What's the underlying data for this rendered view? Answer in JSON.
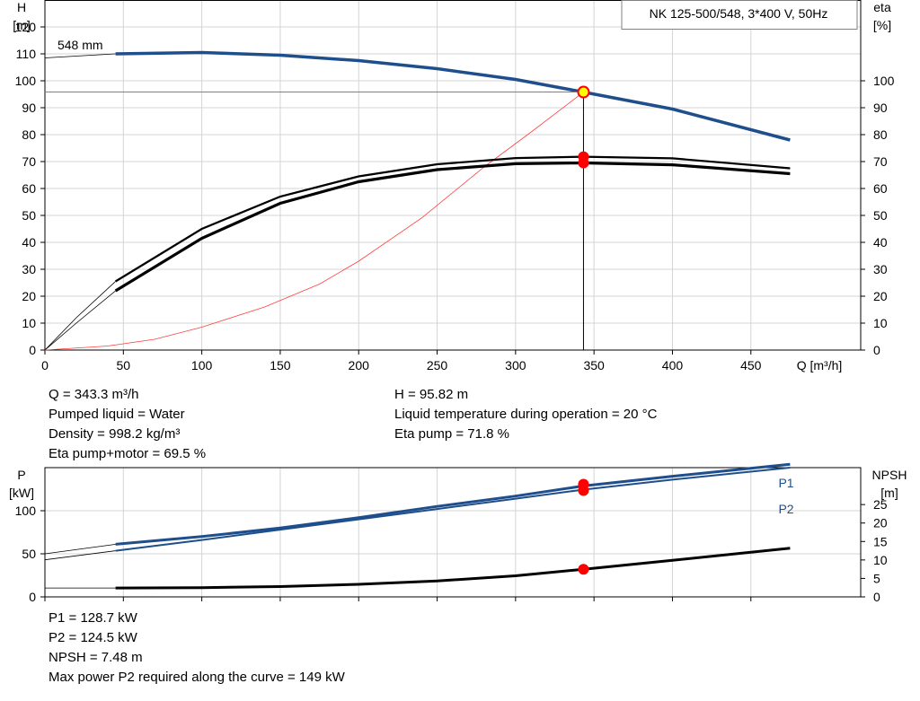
{
  "chart_data": [
    {
      "type": "line",
      "title": "NK 125-500/548, 3*400 V, 50Hz",
      "xlabel": "Q [m³/h]",
      "ylabel_left": [
        "H",
        "[m]"
      ],
      "ylabel_right": [
        "eta",
        "[%]"
      ],
      "xlim": [
        0,
        520
      ],
      "ylim_left": [
        0,
        130
      ],
      "ylim_right": [
        0,
        130
      ],
      "x_ticks": [
        0,
        50,
        100,
        150,
        200,
        250,
        300,
        350,
        400,
        450
      ],
      "y_ticks_left": [
        0,
        10,
        20,
        30,
        40,
        50,
        60,
        70,
        80,
        90,
        100,
        110,
        120
      ],
      "y_ticks_right": [
        0,
        10,
        20,
        30,
        40,
        50,
        60,
        70,
        80,
        90,
        100
      ],
      "curve_label": "548 mm",
      "series": [
        {
          "role": "head",
          "color": "#1f4e8c",
          "x": [
            0,
            45,
            100,
            150,
            200,
            250,
            300,
            343.3,
            400,
            475
          ],
          "y": [
            108.5,
            110,
            110.5,
            109.5,
            107.5,
            104.5,
            100.5,
            95.8,
            89.5,
            78
          ]
        },
        {
          "role": "eta-pump",
          "color": "#000000",
          "x": [
            45,
            100,
            150,
            200,
            250,
            300,
            343.3,
            400,
            475
          ],
          "y": [
            25.5,
            45,
            57,
            64.5,
            69,
            71.3,
            71.8,
            71.2,
            67.5
          ]
        },
        {
          "role": "eta-pump-motor",
          "color": "#000000",
          "x": [
            45,
            100,
            150,
            200,
            250,
            300,
            343.3,
            400,
            475
          ],
          "y": [
            22,
            41.5,
            54.5,
            62.5,
            67,
            69.2,
            69.5,
            68.8,
            65.5
          ]
        },
        {
          "role": "system-curve",
          "color": "#ff4040",
          "x": [
            0,
            40,
            70,
            100,
            140,
            175,
            200,
            240,
            280,
            310,
            343.3
          ],
          "y": [
            0,
            1.5,
            4,
            8.5,
            16,
            24.5,
            33,
            49,
            68,
            81,
            95.8
          ]
        }
      ],
      "duty_point": {
        "x": 343.3,
        "head": 95.82,
        "eta_pump": 71.8,
        "eta_pump_motor": 69.5
      }
    },
    {
      "type": "line",
      "ylabel_left": [
        "P",
        "[kW]"
      ],
      "ylabel_right": [
        "NPSH",
        "[m]"
      ],
      "xlim": [
        0,
        520
      ],
      "ylim_left": [
        0,
        150
      ],
      "ylim_right": [
        0,
        35
      ],
      "y_ticks_left": [
        0,
        50,
        100
      ],
      "y_ticks_right": [
        0,
        5,
        10,
        15,
        20,
        25
      ],
      "series": [
        {
          "name": "P1",
          "color": "#1f4e8c",
          "x": [
            0,
            45,
            100,
            150,
            200,
            250,
            300,
            343.3,
            400,
            475
          ],
          "y": [
            50,
            61,
            70,
            80,
            92,
            105,
            117,
            128.7,
            140,
            154
          ]
        },
        {
          "name": "P2",
          "color": "#1f4e8c",
          "x": [
            0,
            45,
            100,
            150,
            200,
            250,
            300,
            343.3,
            400,
            475
          ],
          "y": [
            43,
            53.5,
            66,
            78,
            90,
            102,
            114,
            124.5,
            136,
            150
          ]
        },
        {
          "role": "npsh",
          "color": "#000000",
          "x": [
            0,
            45,
            100,
            150,
            200,
            250,
            300,
            343.3,
            400,
            475
          ],
          "y": [
            2.4,
            2.4,
            2.5,
            2.8,
            3.4,
            4.3,
            5.7,
            7.48,
            9.9,
            13.2
          ]
        }
      ],
      "duty_point": {
        "x": 343.3,
        "P1": 128.7,
        "P2": 124.5,
        "npsh": 7.48
      }
    }
  ],
  "info_top_left": [
    "Q = 343.3 m³/h",
    "Pumped liquid = Water",
    "Density = 998.2 kg/m³",
    "Eta pump+motor = 69.5 %"
  ],
  "info_top_right": [
    "H = 95.82 m",
    "Liquid temperature during operation = 20 °C",
    "Eta pump = 71.8 %"
  ],
  "info_bottom": [
    "P1 = 128.7 kW",
    "P2 = 124.5 kW",
    "NPSH = 7.48 m",
    "Max power P2 required along the curve = 149 kW"
  ]
}
